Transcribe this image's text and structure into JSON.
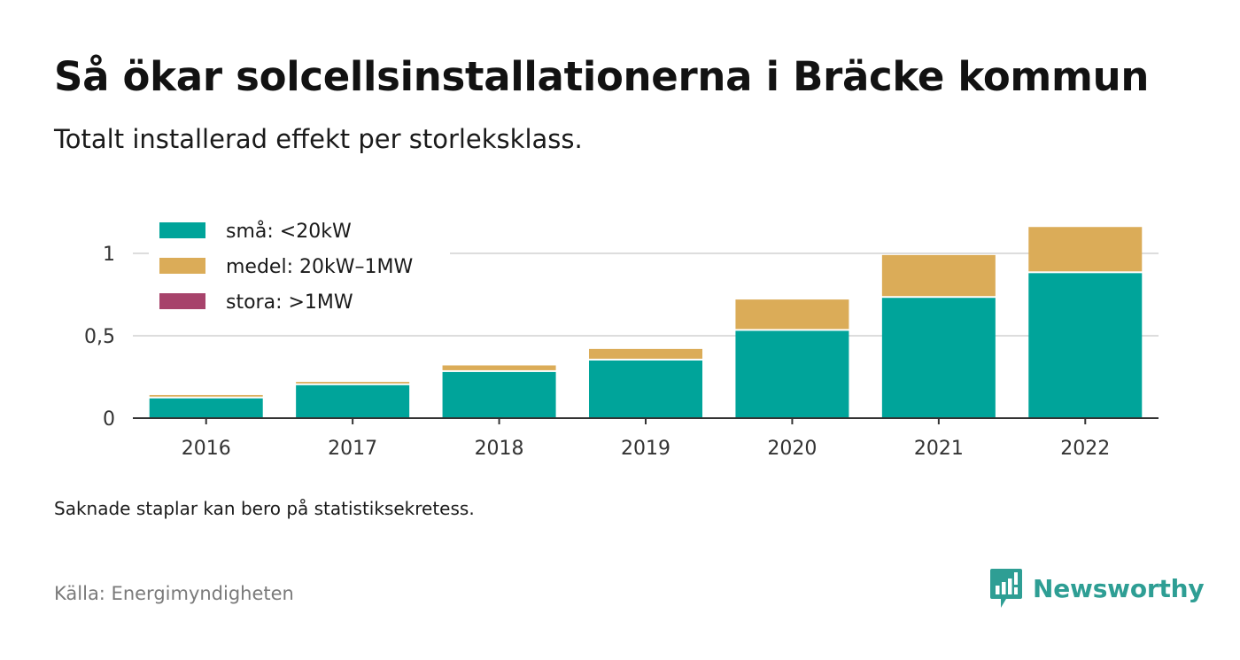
{
  "header": {
    "title": "Så ökar solcellsinstallationerna i Bräcke kommun",
    "subtitle": "Totalt installerad effekt per storleksklass."
  },
  "footer": {
    "note": "Saknade staplar kan bero på statistiksekretess.",
    "source": "Källa: Energimyndigheten",
    "brand": "Newsworthy",
    "brand_icon": "newsworthy-logo-icon"
  },
  "colors": {
    "small": "#00a49a",
    "medium": "#dbac58",
    "large": "#a7436b",
    "grid": "#dddddd",
    "axis": "#333333",
    "brand": "#2e9e94"
  },
  "chart_data": {
    "type": "bar",
    "stacked": true,
    "categories": [
      "2016",
      "2017",
      "2018",
      "2019",
      "2020",
      "2021",
      "2022"
    ],
    "series": [
      {
        "name": "små: <20kW",
        "color": "#00a49a",
        "values": [
          0.12,
          0.2,
          0.28,
          0.35,
          0.53,
          0.73,
          0.88
        ]
      },
      {
        "name": "medel: 20kW–1MW",
        "color": "#dbac58",
        "values": [
          0.02,
          0.02,
          0.04,
          0.07,
          0.19,
          0.26,
          0.28
        ]
      },
      {
        "name": "stora: >1MW",
        "color": "#a7436b",
        "values": [
          0,
          0,
          0,
          0,
          0,
          0,
          0
        ]
      }
    ],
    "yticks": [
      0,
      0.5,
      1
    ],
    "ytick_labels": [
      "0",
      "0,5",
      "1"
    ],
    "ylim": [
      0,
      1.2
    ],
    "grid": true,
    "legend_position": "top-left"
  }
}
